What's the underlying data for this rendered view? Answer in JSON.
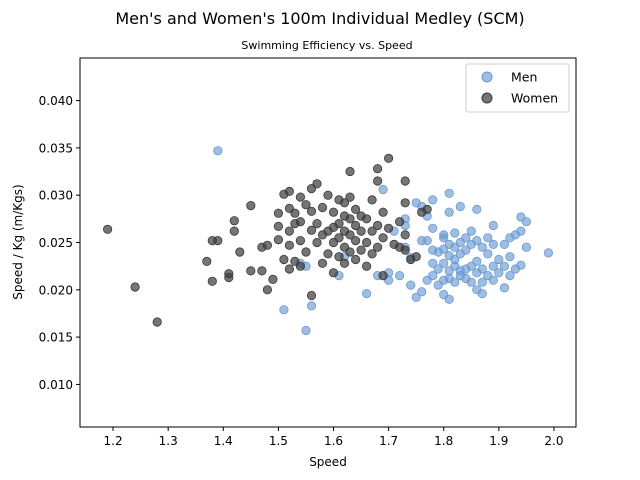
{
  "chart_data": {
    "type": "scatter",
    "title": "Men's and Women's 100m Individual Medley (SCM)",
    "subtitle": "Swimming Efficiency vs. Speed",
    "xlabel": "Speed",
    "ylabel": "Speed / Kg (m/Kgs)",
    "xlim": [
      1.14,
      2.04
    ],
    "ylim": [
      0.0055,
      0.0445
    ],
    "x_ticks": [
      "1.2",
      "1.3",
      "1.4",
      "1.5",
      "1.6",
      "1.7",
      "1.8",
      "1.9",
      "2.0"
    ],
    "y_ticks": [
      "0.010",
      "0.015",
      "0.020",
      "0.025",
      "0.030",
      "0.035",
      "0.040"
    ],
    "grid": false,
    "legend_position": "top-right",
    "legend": [
      "Men",
      "Women"
    ],
    "series": [
      {
        "name": "Men",
        "color": "#6b9bd1",
        "points": [
          [
            1.39,
            0.0347
          ],
          [
            1.55,
            0.0157
          ],
          [
            1.51,
            0.0179
          ],
          [
            1.56,
            0.0183
          ],
          [
            1.55,
            0.0225
          ],
          [
            1.54,
            0.0228
          ],
          [
            1.61,
            0.0215
          ],
          [
            1.62,
            0.0235
          ],
          [
            1.66,
            0.0196
          ],
          [
            1.68,
            0.0215
          ],
          [
            1.69,
            0.0306
          ],
          [
            1.7,
            0.021
          ],
          [
            1.7,
            0.0218
          ],
          [
            1.71,
            0.0262
          ],
          [
            1.72,
            0.0215
          ],
          [
            1.73,
            0.0245
          ],
          [
            1.73,
            0.0268
          ],
          [
            1.73,
            0.0275
          ],
          [
            1.74,
            0.0205
          ],
          [
            1.74,
            0.0234
          ],
          [
            1.75,
            0.0192
          ],
          [
            1.75,
            0.0292
          ],
          [
            1.76,
            0.0198
          ],
          [
            1.76,
            0.0252
          ],
          [
            1.76,
            0.0288
          ],
          [
            1.77,
            0.021
          ],
          [
            1.77,
            0.0252
          ],
          [
            1.77,
            0.0278
          ],
          [
            1.78,
            0.0215
          ],
          [
            1.78,
            0.0228
          ],
          [
            1.78,
            0.0242
          ],
          [
            1.78,
            0.0265
          ],
          [
            1.78,
            0.0295
          ],
          [
            1.79,
            0.0222
          ],
          [
            1.79,
            0.0205
          ],
          [
            1.79,
            0.024
          ],
          [
            1.8,
            0.0195
          ],
          [
            1.8,
            0.021
          ],
          [
            1.8,
            0.0228
          ],
          [
            1.8,
            0.0243
          ],
          [
            1.8,
            0.0255
          ],
          [
            1.8,
            0.0258
          ],
          [
            1.81,
            0.019
          ],
          [
            1.81,
            0.0212
          ],
          [
            1.81,
            0.022
          ],
          [
            1.81,
            0.0236
          ],
          [
            1.81,
            0.0248
          ],
          [
            1.81,
            0.0282
          ],
          [
            1.81,
            0.0302
          ],
          [
            1.82,
            0.0208
          ],
          [
            1.82,
            0.0225
          ],
          [
            1.82,
            0.0232
          ],
          [
            1.82,
            0.0245
          ],
          [
            1.82,
            0.026
          ],
          [
            1.83,
            0.0215
          ],
          [
            1.83,
            0.022
          ],
          [
            1.83,
            0.0238
          ],
          [
            1.83,
            0.025
          ],
          [
            1.83,
            0.0288
          ],
          [
            1.84,
            0.0212
          ],
          [
            1.84,
            0.0222
          ],
          [
            1.84,
            0.0242
          ],
          [
            1.84,
            0.0255
          ],
          [
            1.85,
            0.0208
          ],
          [
            1.85,
            0.0225
          ],
          [
            1.85,
            0.0248
          ],
          [
            1.85,
            0.0262
          ],
          [
            1.86,
            0.02
          ],
          [
            1.86,
            0.0218
          ],
          [
            1.86,
            0.023
          ],
          [
            1.86,
            0.0252
          ],
          [
            1.86,
            0.0285
          ],
          [
            1.87,
            0.0196
          ],
          [
            1.87,
            0.0208
          ],
          [
            1.87,
            0.0222
          ],
          [
            1.87,
            0.0245
          ],
          [
            1.88,
            0.0215
          ],
          [
            1.88,
            0.0238
          ],
          [
            1.88,
            0.0255
          ],
          [
            1.89,
            0.021
          ],
          [
            1.89,
            0.0225
          ],
          [
            1.89,
            0.0248
          ],
          [
            1.89,
            0.0268
          ],
          [
            1.9,
            0.0218
          ],
          [
            1.9,
            0.0232
          ],
          [
            1.91,
            0.0202
          ],
          [
            1.91,
            0.0225
          ],
          [
            1.91,
            0.0248
          ],
          [
            1.92,
            0.0215
          ],
          [
            1.92,
            0.0235
          ],
          [
            1.92,
            0.0255
          ],
          [
            1.93,
            0.0222
          ],
          [
            1.93,
            0.0258
          ],
          [
            1.94,
            0.0226
          ],
          [
            1.94,
            0.0262
          ],
          [
            1.94,
            0.0277
          ],
          [
            1.95,
            0.0272
          ],
          [
            1.95,
            0.0245
          ],
          [
            1.99,
            0.0239
          ]
        ]
      },
      {
        "name": "Women",
        "color": "#3a3a3a",
        "points": [
          [
            1.19,
            0.0264
          ],
          [
            1.24,
            0.0203
          ],
          [
            1.28,
            0.0166
          ],
          [
            1.37,
            0.023
          ],
          [
            1.38,
            0.0209
          ],
          [
            1.38,
            0.0252
          ],
          [
            1.39,
            0.0252
          ],
          [
            1.41,
            0.0213
          ],
          [
            1.41,
            0.0217
          ],
          [
            1.42,
            0.0262
          ],
          [
            1.42,
            0.0273
          ],
          [
            1.43,
            0.024
          ],
          [
            1.45,
            0.0289
          ],
          [
            1.45,
            0.022
          ],
          [
            1.47,
            0.0245
          ],
          [
            1.47,
            0.022
          ],
          [
            1.48,
            0.02
          ],
          [
            1.48,
            0.0247
          ],
          [
            1.49,
            0.0211
          ],
          [
            1.5,
            0.0253
          ],
          [
            1.5,
            0.0267
          ],
          [
            1.5,
            0.0281
          ],
          [
            1.51,
            0.0232
          ],
          [
            1.51,
            0.0301
          ],
          [
            1.52,
            0.0222
          ],
          [
            1.52,
            0.0247
          ],
          [
            1.52,
            0.0262
          ],
          [
            1.52,
            0.0286
          ],
          [
            1.52,
            0.0304
          ],
          [
            1.53,
            0.023
          ],
          [
            1.53,
            0.027
          ],
          [
            1.53,
            0.0281
          ],
          [
            1.54,
            0.0225
          ],
          [
            1.54,
            0.0252
          ],
          [
            1.54,
            0.0272
          ],
          [
            1.54,
            0.0298
          ],
          [
            1.55,
            0.024
          ],
          [
            1.55,
            0.029
          ],
          [
            1.56,
            0.0194
          ],
          [
            1.56,
            0.0263
          ],
          [
            1.56,
            0.0283
          ],
          [
            1.56,
            0.0307
          ],
          [
            1.57,
            0.025
          ],
          [
            1.57,
            0.027
          ],
          [
            1.57,
            0.0312
          ],
          [
            1.58,
            0.0228
          ],
          [
            1.58,
            0.0258
          ],
          [
            1.58,
            0.0287
          ],
          [
            1.59,
            0.0238
          ],
          [
            1.59,
            0.0262
          ],
          [
            1.59,
            0.03
          ],
          [
            1.6,
            0.0218
          ],
          [
            1.6,
            0.025
          ],
          [
            1.6,
            0.0266
          ],
          [
            1.6,
            0.0282
          ],
          [
            1.61,
            0.0235
          ],
          [
            1.61,
            0.0255
          ],
          [
            1.61,
            0.027
          ],
          [
            1.61,
            0.0295
          ],
          [
            1.62,
            0.0228
          ],
          [
            1.62,
            0.0245
          ],
          [
            1.62,
            0.0262
          ],
          [
            1.62,
            0.0278
          ],
          [
            1.62,
            0.0292
          ],
          [
            1.63,
            0.024
          ],
          [
            1.63,
            0.0258
          ],
          [
            1.63,
            0.0275
          ],
          [
            1.63,
            0.0298
          ],
          [
            1.63,
            0.0325
          ],
          [
            1.64,
            0.0232
          ],
          [
            1.64,
            0.0252
          ],
          [
            1.64,
            0.0268
          ],
          [
            1.64,
            0.0285
          ],
          [
            1.65,
            0.0242
          ],
          [
            1.65,
            0.0262
          ],
          [
            1.65,
            0.0278
          ],
          [
            1.66,
            0.0225
          ],
          [
            1.66,
            0.025
          ],
          [
            1.66,
            0.0275
          ],
          [
            1.67,
            0.0238
          ],
          [
            1.67,
            0.0262
          ],
          [
            1.67,
            0.0295
          ],
          [
            1.68,
            0.0245
          ],
          [
            1.68,
            0.0268
          ],
          [
            1.68,
            0.0315
          ],
          [
            1.68,
            0.0328
          ],
          [
            1.69,
            0.0215
          ],
          [
            1.69,
            0.0255
          ],
          [
            1.69,
            0.0282
          ],
          [
            1.7,
            0.0339
          ],
          [
            1.7,
            0.0265
          ],
          [
            1.71,
            0.0248
          ],
          [
            1.72,
            0.0245
          ],
          [
            1.72,
            0.0272
          ],
          [
            1.73,
            0.0242
          ],
          [
            1.73,
            0.0258
          ],
          [
            1.73,
            0.0292
          ],
          [
            1.73,
            0.0315
          ],
          [
            1.74,
            0.0232
          ],
          [
            1.75,
            0.0235
          ],
          [
            1.76,
            0.0282
          ],
          [
            1.77,
            0.0285
          ]
        ]
      }
    ]
  }
}
